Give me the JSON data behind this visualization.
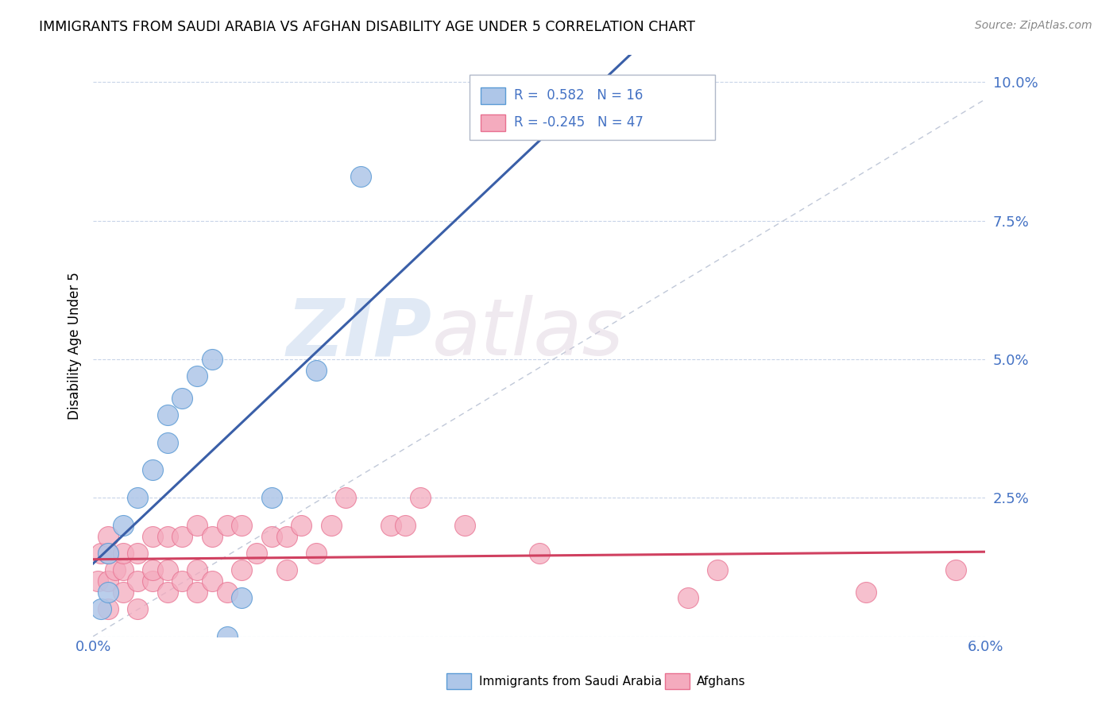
{
  "title": "IMMIGRANTS FROM SAUDI ARABIA VS AFGHAN DISABILITY AGE UNDER 5 CORRELATION CHART",
  "source": "Source: ZipAtlas.com",
  "ylabel": "Disability Age Under 5",
  "xlim": [
    0.0,
    0.06
  ],
  "ylim": [
    0.0,
    0.105
  ],
  "xticks": [
    0.0,
    0.01,
    0.02,
    0.03,
    0.04,
    0.05,
    0.06
  ],
  "xticklabels": [
    "0.0%",
    "",
    "",
    "",
    "",
    "",
    "6.0%"
  ],
  "yticks": [
    0.0,
    0.025,
    0.05,
    0.075,
    0.1
  ],
  "yticklabels": [
    "",
    "2.5%",
    "5.0%",
    "7.5%",
    "10.0%"
  ],
  "saudi_R": 0.582,
  "saudi_N": 16,
  "afghan_R": -0.245,
  "afghan_N": 47,
  "saudi_color": "#aec6e8",
  "afghan_color": "#f4abbe",
  "saudi_edge_color": "#5b9bd5",
  "afghan_edge_color": "#e87090",
  "saudi_line_color": "#3a5fa8",
  "afghan_line_color": "#d04060",
  "background_color": "#ffffff",
  "grid_color": "#c8d4e8",
  "watermark_zip": "ZIP",
  "watermark_atlas": "atlas",
  "saudi_x": [
    0.0005,
    0.001,
    0.001,
    0.002,
    0.003,
    0.004,
    0.005,
    0.005,
    0.006,
    0.007,
    0.008,
    0.009,
    0.01,
    0.012,
    0.015,
    0.018
  ],
  "saudi_y": [
    0.005,
    0.008,
    0.015,
    0.02,
    0.025,
    0.03,
    0.035,
    0.04,
    0.043,
    0.047,
    0.05,
    0.0,
    0.007,
    0.025,
    0.048,
    0.083
  ],
  "afghan_x": [
    0.0003,
    0.0005,
    0.001,
    0.001,
    0.001,
    0.001,
    0.0015,
    0.002,
    0.002,
    0.002,
    0.003,
    0.003,
    0.003,
    0.004,
    0.004,
    0.004,
    0.005,
    0.005,
    0.005,
    0.006,
    0.006,
    0.007,
    0.007,
    0.007,
    0.008,
    0.008,
    0.009,
    0.009,
    0.01,
    0.01,
    0.011,
    0.012,
    0.013,
    0.013,
    0.014,
    0.015,
    0.016,
    0.017,
    0.02,
    0.021,
    0.022,
    0.025,
    0.03,
    0.04,
    0.042,
    0.052,
    0.058
  ],
  "afghan_y": [
    0.01,
    0.015,
    0.005,
    0.01,
    0.015,
    0.018,
    0.012,
    0.008,
    0.012,
    0.015,
    0.005,
    0.01,
    0.015,
    0.01,
    0.012,
    0.018,
    0.008,
    0.012,
    0.018,
    0.01,
    0.018,
    0.008,
    0.012,
    0.02,
    0.01,
    0.018,
    0.008,
    0.02,
    0.012,
    0.02,
    0.015,
    0.018,
    0.012,
    0.018,
    0.02,
    0.015,
    0.02,
    0.025,
    0.02,
    0.02,
    0.025,
    0.02,
    0.015,
    0.007,
    0.012,
    0.008,
    0.012
  ]
}
